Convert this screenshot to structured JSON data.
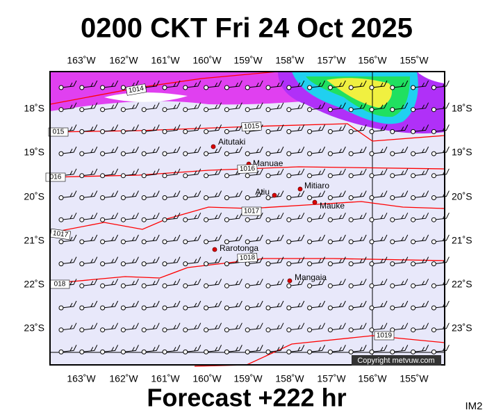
{
  "title": "0200 CKT Fri 24 Oct 2025",
  "footer": "Forecast +222 hr",
  "image_id": "IM2",
  "copyright": "Copyright metvuw.com",
  "lon_labels": [
    "163˚W",
    "162˚W",
    "161˚W",
    "160˚W",
    "159˚W",
    "158˚W",
    "157˚W",
    "156˚W",
    "155˚W"
  ],
  "lat_labels": [
    "18˚S",
    "19˚S",
    "20˚S",
    "21˚S",
    "22˚S",
    "23˚S"
  ],
  "places": [
    "Aitutaki",
    "Manuae",
    "Mitiaro",
    "Atiu",
    "Mauke",
    "Rarotonga",
    "Mangaia"
  ],
  "isobar_labels": [
    "1014",
    "1015",
    "1016",
    "1017",
    "1018",
    "1019",
    "015",
    "016",
    "1017",
    "018"
  ]
}
